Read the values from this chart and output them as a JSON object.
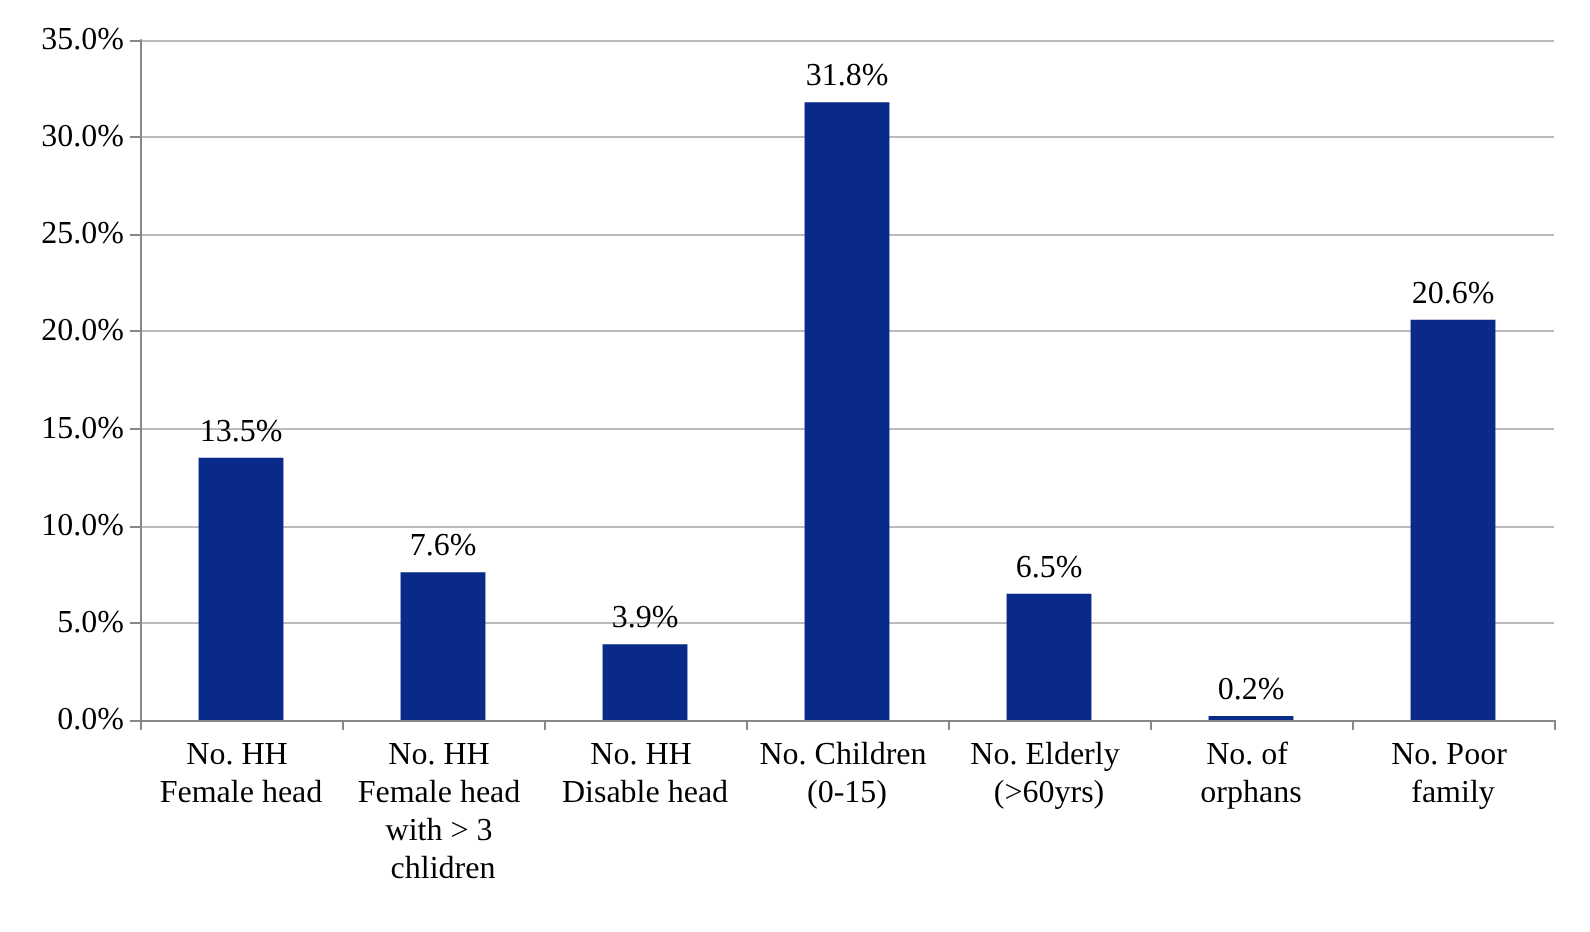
{
  "chart_data": {
    "type": "bar",
    "categories": [
      "No. HH Female head",
      "No. HH Female head with > 3 chlidren",
      "No. HH Disable head",
      "No. Children (0-15)",
      "No. Elderly (>60yrs)",
      "No. of orphans",
      "No. Poor family"
    ],
    "values": [
      13.5,
      7.6,
      3.9,
      31.8,
      6.5,
      0.2,
      20.6
    ],
    "value_labels": [
      "13.5%",
      "7.6%",
      "3.9%",
      "31.8%",
      "6.5%",
      "0.2%",
      "20.6%"
    ],
    "color": "#0a2a8a",
    "ylim": [
      0,
      35
    ],
    "yticks": [
      {
        "value": 0,
        "label": "0.0%"
      },
      {
        "value": 5,
        "label": "5.0%"
      },
      {
        "value": 10,
        "label": "10.0%"
      },
      {
        "value": 15,
        "label": "15.0%"
      },
      {
        "value": 20,
        "label": "20.0%"
      },
      {
        "value": 25,
        "label": "25.0%"
      },
      {
        "value": 30,
        "label": "30.0%"
      },
      {
        "value": 35,
        "label": "35.0%"
      }
    ],
    "grid": "y"
  }
}
